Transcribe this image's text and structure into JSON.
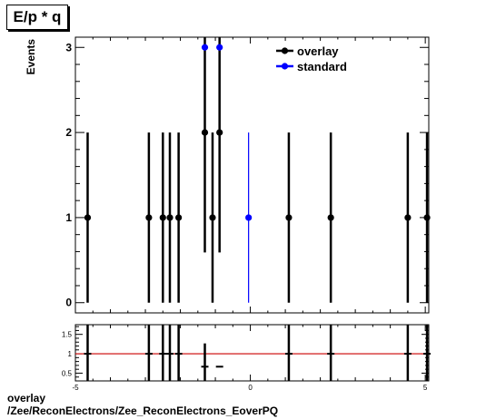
{
  "header": {
    "title": "E/p * q"
  },
  "footer": {
    "line1": "overlay",
    "line2": "/Zee/ReconElectrons/Zee_ReconElectrons_EoverPQ"
  },
  "chart_data": [
    {
      "type": "scatter",
      "title": "E/p * q",
      "ylabel": "Events",
      "xlabel": "",
      "xlim": [
        -5,
        5.1
      ],
      "ylim": [
        -0.12,
        3.12
      ],
      "x_ticks": [],
      "y_ticks": [
        "0",
        "1",
        "2",
        "3"
      ],
      "grid": false,
      "legend_position": "top-right",
      "legend": [
        "overlay",
        "standard"
      ],
      "series": [
        {
          "name": "overlay",
          "color": "#000000",
          "points": [
            {
              "x": -4.65,
              "y": 1,
              "err": 1
            },
            {
              "x": -2.9,
              "y": 1,
              "err": 1
            },
            {
              "x": -2.5,
              "y": 1,
              "err": 1
            },
            {
              "x": -2.3,
              "y": 1,
              "err": 1
            },
            {
              "x": -2.05,
              "y": 1,
              "err": 1
            },
            {
              "x": -1.3,
              "y": 2,
              "err": 1.41
            },
            {
              "x": -1.08,
              "y": 1,
              "err": 1
            },
            {
              "x": -0.88,
              "y": 2,
              "err": 1.41
            },
            {
              "x": 1.1,
              "y": 1,
              "err": 1
            },
            {
              "x": 2.3,
              "y": 1,
              "err": 1
            },
            {
              "x": 4.5,
              "y": 1,
              "err": 1
            },
            {
              "x": 5.05,
              "y": 1,
              "err": 1
            }
          ]
        },
        {
          "name": "standard",
          "color": "#0000ff",
          "points": [
            {
              "x": -1.3,
              "y": 3,
              "err": 0
            },
            {
              "x": -0.88,
              "y": 3,
              "err": 0
            },
            {
              "x": -0.05,
              "y": 1,
              "err": 1
            }
          ]
        }
      ]
    },
    {
      "type": "scatter",
      "title": "",
      "xlabel": "",
      "ylabel": "",
      "xlim": [
        -5,
        5.1
      ],
      "ylim": [
        0.3,
        1.75
      ],
      "x_ticks": [
        "-5",
        "0",
        "5"
      ],
      "y_ticks": [
        "0.5",
        "1",
        "1.5"
      ],
      "reference_line": {
        "y": 1,
        "color": "#cc0000"
      },
      "series": [
        {
          "name": "",
          "color": "#000000",
          "points": [
            {
              "x": -4.65,
              "y": 1,
              "err": 1
            },
            {
              "x": -2.9,
              "y": 1,
              "err": 1
            },
            {
              "x": -2.5,
              "y": 1,
              "err": 1
            },
            {
              "x": -2.3,
              "y": 1,
              "err": 1
            },
            {
              "x": -2.05,
              "y": 1,
              "err": 1
            },
            {
              "x": -1.3,
              "y": 0.667,
              "err": 0.6
            },
            {
              "x": -0.88,
              "y": 0.667,
              "err": 0
            },
            {
              "x": 1.1,
              "y": 1,
              "err": 1
            },
            {
              "x": 2.3,
              "y": 1,
              "err": 1
            },
            {
              "x": 4.5,
              "y": 1,
              "err": 1
            },
            {
              "x": 5.05,
              "y": 1,
              "err": 1
            }
          ]
        }
      ]
    }
  ]
}
